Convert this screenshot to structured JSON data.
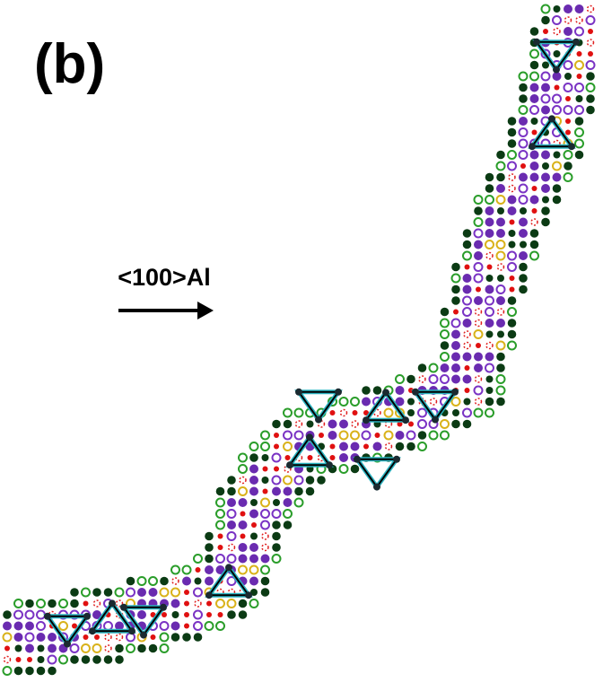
{
  "panel_label": "(b)",
  "direction_label": "<100>Al"
}
